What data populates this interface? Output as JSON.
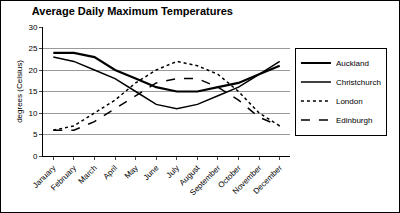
{
  "chart_data": {
    "type": "line",
    "title": "Average Daily Maximum Temperatures",
    "y_label": "degrees (Celsius)",
    "categories": [
      "January",
      "February",
      "March",
      "April",
      "May",
      "June",
      "July",
      "August",
      "September",
      "October",
      "November",
      "December"
    ],
    "series": [
      {
        "name": "Auckland",
        "color": "#000000",
        "line_style": "solid",
        "values": [
          24,
          24,
          23,
          20,
          18,
          16,
          15,
          15,
          16,
          17,
          19,
          21
        ]
      },
      {
        "name": "Christchurch",
        "color": "#000000",
        "line_style": "solid",
        "values": [
          23,
          22,
          20,
          18,
          15,
          12,
          11,
          12,
          14,
          16,
          19,
          22
        ]
      },
      {
        "name": "London",
        "color": "#000000",
        "line_style": "dot",
        "values": [
          6,
          7,
          10,
          13,
          17,
          20,
          22,
          21,
          19,
          15,
          10,
          7
        ]
      },
      {
        "name": "Edinburgh",
        "color": "#000000",
        "line_style": "dash",
        "values": [
          6,
          6,
          8,
          11,
          14,
          17,
          18,
          18,
          16,
          13,
          9,
          7
        ]
      }
    ],
    "ylim": [
      0,
      30
    ],
    "yticks": [
      0,
      5,
      10,
      15,
      20,
      25,
      30
    ],
    "grid": true,
    "legend": "right"
  }
}
